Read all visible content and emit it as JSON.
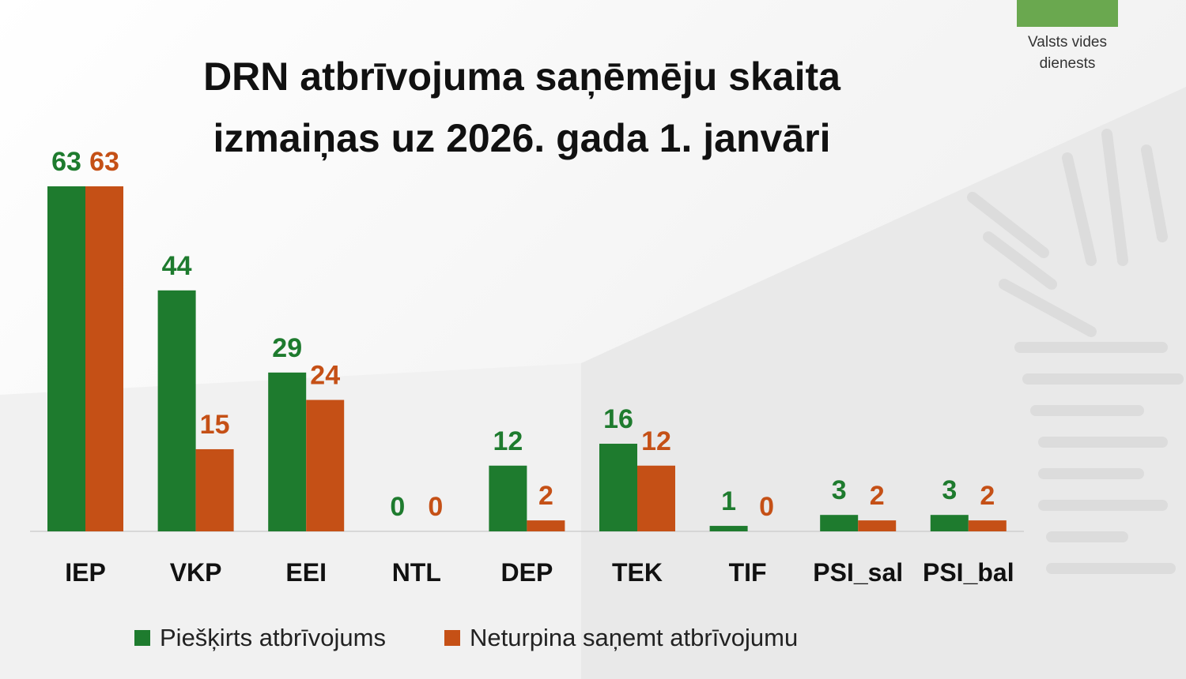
{
  "org": {
    "logo_text": "Valsts vides\ndienests",
    "logo_color": "#6aa84f"
  },
  "chart_data": {
    "type": "bar",
    "title": "DRN atbrīvojuma saņēmēju skaita\nizmaiņas uz 2026. gada 1. janvāri",
    "categories": [
      "IEP",
      "VKP",
      "EEI",
      "NTL",
      "DEP",
      "TEK",
      "TIF",
      "PSI_sal",
      "PSI_bal"
    ],
    "series": [
      {
        "name": "Piešķirts atbrīvojums",
        "color": "#1e7b2e",
        "values": [
          63,
          44,
          29,
          0,
          12,
          16,
          1,
          3,
          3
        ]
      },
      {
        "name": "Neturpina saņemt atbrīvojumu",
        "color": "#c55016",
        "values": [
          63,
          15,
          24,
          0,
          2,
          12,
          0,
          2,
          2
        ]
      }
    ],
    "ylim": [
      0,
      70
    ],
    "grid": false,
    "data_labels": true,
    "legend_position": "bottom"
  }
}
